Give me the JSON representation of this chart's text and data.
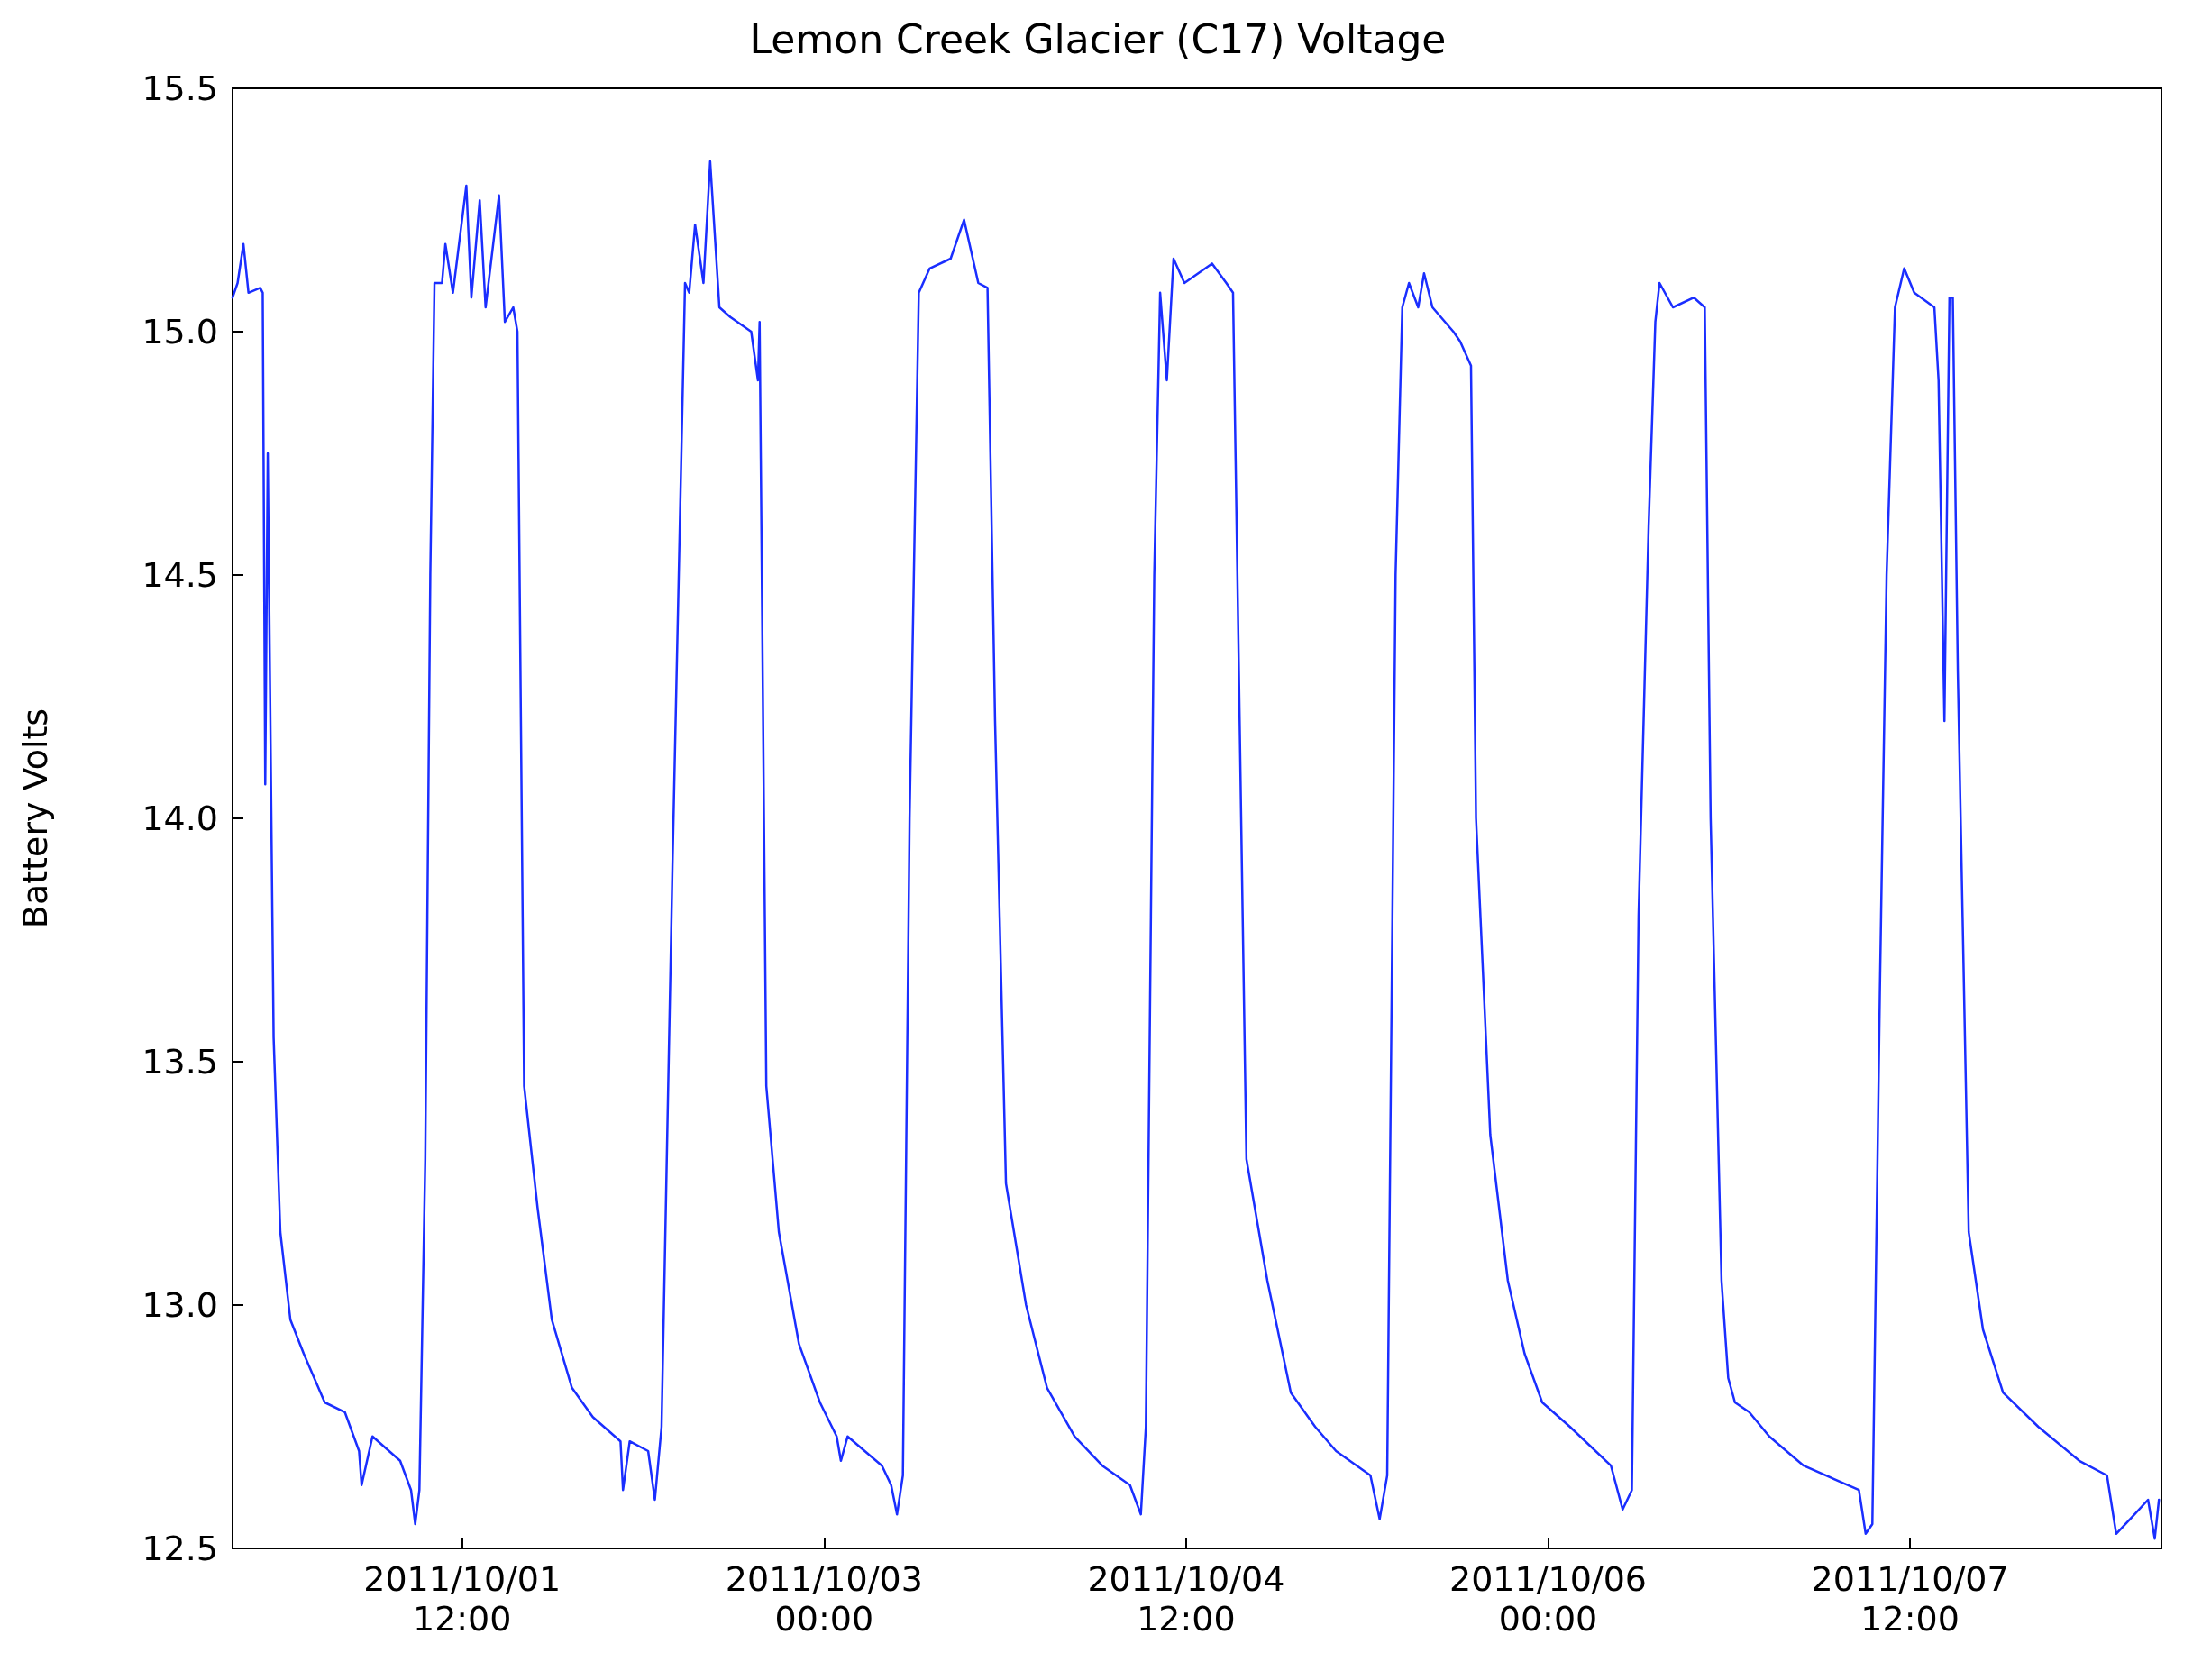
{
  "chart_data": {
    "type": "line",
    "title": "Lemon Creek Glacier (C17) Voltage",
    "ylabel": "Battery Volts",
    "xlim": [
      "2011-09-30T13:10",
      "2011-10-08T13:00"
    ],
    "xticks": [
      {
        "value": "2011-10-01T12:00",
        "label": "2011/10/01\n12:00"
      },
      {
        "value": "2011-10-03T00:00",
        "label": "2011/10/03\n00:00"
      },
      {
        "value": "2011-10-04T12:00",
        "label": "2011/10/04\n12:00"
      },
      {
        "value": "2011-10-06T00:00",
        "label": "2011/10/06\n00:00"
      },
      {
        "value": "2011-10-07T12:00",
        "label": "2011/10/07\n12:00"
      }
    ],
    "ylim": [
      12.5,
      15.5
    ],
    "yticks": [
      12.5,
      {
        "value": 13,
        "label": "13.0"
      },
      13.5,
      {
        "value": 14,
        "label": "14.0"
      },
      14.5,
      {
        "value": 15,
        "label": "15.0"
      },
      15.5
    ],
    "grid": false,
    "series": [
      {
        "color": "#1a2eff",
        "x": [
          "2011-09-30T13:10",
          "2011-09-30T13:40",
          "2011-09-30T14:15",
          "2011-09-30T14:45",
          "2011-09-30T15:55",
          "2011-09-30T16:10",
          "2011-09-30T16:25",
          "2011-09-30T16:40",
          "2011-09-30T17:00",
          "2011-09-30T17:15",
          "2011-09-30T17:55",
          "2011-09-30T18:55",
          "2011-09-30T20:15",
          "2011-09-30T22:20",
          "2011-10-01T00:20",
          "2011-10-01T01:45",
          "2011-10-01T02:00",
          "2011-10-01T03:05",
          "2011-10-01T05:50",
          "2011-10-01T06:55",
          "2011-10-01T07:20",
          "2011-10-01T07:45",
          "2011-10-01T08:20",
          "2011-10-01T08:50",
          "2011-10-01T09:15",
          "2011-10-01T10:00",
          "2011-10-01T10:20",
          "2011-10-01T11:05",
          "2011-10-01T12:25",
          "2011-10-01T12:55",
          "2011-10-01T13:45",
          "2011-10-01T14:20",
          "2011-10-01T15:40",
          "2011-10-01T16:15",
          "2011-10-01T17:05",
          "2011-10-01T17:30",
          "2011-10-01T18:10",
          "2011-10-01T19:30",
          "2011-10-01T20:55",
          "2011-10-01T22:55",
          "2011-10-02T01:00",
          "2011-10-02T03:45",
          "2011-10-02T04:00",
          "2011-10-02T04:40",
          "2011-10-02T06:30",
          "2011-10-02T07:10",
          "2011-10-02T07:50",
          "2011-10-02T08:55",
          "2011-10-02T10:10",
          "2011-10-02T10:35",
          "2011-10-02T11:10",
          "2011-10-02T12:00",
          "2011-10-02T12:40",
          "2011-10-02T13:35",
          "2011-10-02T14:40",
          "2011-10-02T16:45",
          "2011-10-02T17:25",
          "2011-10-02T17:35",
          "2011-10-02T18:15",
          "2011-10-02T19:30",
          "2011-10-02T21:30",
          "2011-10-02T23:35",
          "2011-10-03T01:15",
          "2011-10-03T01:40",
          "2011-10-03T02:20",
          "2011-10-03T05:45",
          "2011-10-03T06:40",
          "2011-10-03T07:15",
          "2011-10-03T07:50",
          "2011-10-03T08:30",
          "2011-10-03T09:25",
          "2011-10-03T10:30",
          "2011-10-03T12:35",
          "2011-10-03T13:55",
          "2011-10-03T15:20",
          "2011-10-03T16:15",
          "2011-10-03T17:00",
          "2011-10-03T18:05",
          "2011-10-03T20:05",
          "2011-10-03T22:10",
          "2011-10-04T00:55",
          "2011-10-04T03:40",
          "2011-10-04T06:25",
          "2011-10-04T07:30",
          "2011-10-04T08:00",
          "2011-10-04T08:50",
          "2011-10-04T09:25",
          "2011-10-04T10:05",
          "2011-10-04T10:45",
          "2011-10-04T11:50",
          "2011-10-04T14:35",
          "2011-10-04T16:00",
          "2011-10-04T16:40",
          "2011-10-04T18:00",
          "2011-10-04T20:05",
          "2011-10-04T22:25",
          "2011-10-05T00:50",
          "2011-10-05T02:55",
          "2011-10-05T06:20",
          "2011-10-05T07:15",
          "2011-10-05T08:00",
          "2011-10-05T08:50",
          "2011-10-05T09:30",
          "2011-10-05T10:10",
          "2011-10-05T11:05",
          "2011-10-05T11:40",
          "2011-10-05T12:30",
          "2011-10-05T14:35",
          "2011-10-05T15:15",
          "2011-10-05T16:20",
          "2011-10-05T16:50",
          "2011-10-05T18:15",
          "2011-10-05T20:00",
          "2011-10-05T21:40",
          "2011-10-05T23:25",
          "2011-10-06T02:10",
          "2011-10-06T06:15",
          "2011-10-06T07:25",
          "2011-10-06T08:20",
          "2011-10-06T09:00",
          "2011-10-06T10:00",
          "2011-10-06T10:40",
          "2011-10-06T11:05",
          "2011-10-06T12:25",
          "2011-10-06T14:30",
          "2011-10-06T15:35",
          "2011-10-06T16:10",
          "2011-10-06T17:15",
          "2011-10-06T17:55",
          "2011-10-06T18:35",
          "2011-10-06T20:00",
          "2011-10-06T22:00",
          "2011-10-07T01:25",
          "2011-10-07T06:55",
          "2011-10-07T07:35",
          "2011-10-07T08:15",
          "2011-10-07T09:00",
          "2011-10-07T09:40",
          "2011-10-07T10:30",
          "2011-10-07T11:25",
          "2011-10-07T12:25",
          "2011-10-07T14:25",
          "2011-10-07T14:50",
          "2011-10-07T15:25",
          "2011-10-07T15:55",
          "2011-10-07T16:15",
          "2011-10-07T16:45",
          "2011-10-07T17:50",
          "2011-10-07T19:15",
          "2011-10-07T21:15",
          "2011-10-08T00:45",
          "2011-10-08T04:50",
          "2011-10-08T07:35",
          "2011-10-08T08:30",
          "2011-10-08T10:20",
          "2011-10-08T11:40",
          "2011-10-08T12:20",
          "2011-10-08T12:45"
        ],
        "values": [
          15.07,
          15.1,
          15.18,
          15.08,
          15.09,
          15.08,
          14.07,
          14.75,
          14.05,
          13.55,
          13.15,
          12.97,
          12.9,
          12.8,
          12.78,
          12.7,
          12.63,
          12.73,
          12.68,
          12.62,
          12.55,
          12.62,
          13.3,
          14.5,
          15.1,
          15.1,
          15.18,
          15.08,
          15.3,
          15.07,
          15.27,
          15.05,
          15.28,
          15.02,
          15.05,
          15.0,
          13.45,
          13.2,
          12.97,
          12.83,
          12.77,
          12.72,
          12.62,
          12.72,
          12.7,
          12.6,
          12.75,
          13.9,
          15.1,
          15.08,
          15.22,
          15.1,
          15.35,
          15.05,
          15.03,
          15.0,
          14.9,
          15.02,
          13.45,
          13.15,
          12.92,
          12.8,
          12.73,
          12.68,
          12.73,
          12.67,
          12.63,
          12.57,
          12.65,
          14.0,
          15.08,
          15.13,
          15.15,
          15.23,
          15.1,
          15.09,
          14.2,
          13.25,
          13.0,
          12.83,
          12.73,
          12.67,
          12.63,
          12.57,
          12.75,
          14.5,
          15.08,
          14.9,
          15.15,
          15.1,
          15.14,
          15.1,
          15.08,
          13.3,
          13.05,
          12.82,
          12.75,
          12.7,
          12.65,
          12.56,
          12.65,
          14.5,
          15.05,
          15.1,
          15.05,
          15.12,
          15.05,
          15.0,
          14.98,
          14.93,
          14.0,
          13.35,
          13.05,
          12.9,
          12.8,
          12.75,
          12.67,
          12.58,
          12.62,
          13.8,
          14.6,
          15.02,
          15.1,
          15.05,
          15.07,
          15.05,
          14.0,
          13.05,
          12.85,
          12.8,
          12.78,
          12.73,
          12.67,
          12.62,
          12.53,
          12.55,
          13.65,
          14.5,
          15.05,
          15.13,
          15.08,
          15.05,
          14.9,
          14.2,
          15.07,
          15.07,
          14.3,
          13.15,
          12.95,
          12.82,
          12.75,
          12.68,
          12.65,
          12.53,
          12.57,
          12.6,
          12.52,
          12.6
        ]
      }
    ]
  }
}
